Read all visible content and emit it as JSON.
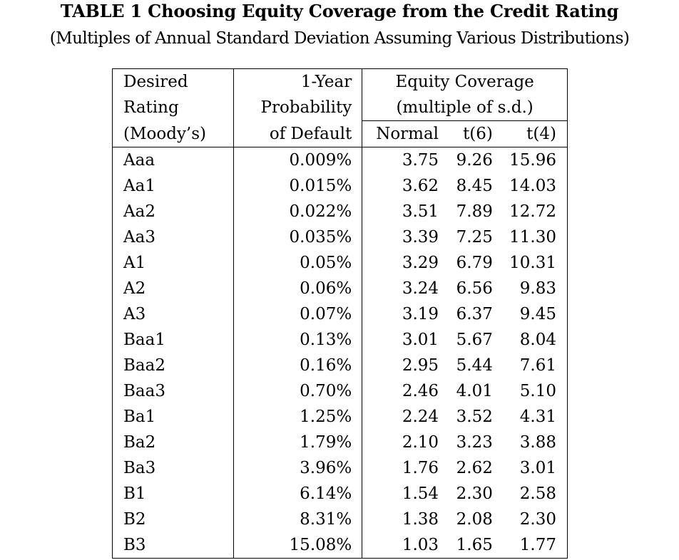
{
  "title": "TABLE 1 Choosing Equity Coverage from the Credit Rating",
  "subtitle": "(Multiples of Annual Standard Deviation Assuming Various Distributions)",
  "header": {
    "rating": [
      "Desired",
      "Rating",
      "(Moody’s)"
    ],
    "probability": [
      "1-Year",
      "Probability",
      "of Default"
    ],
    "coverage": [
      "Equity Coverage",
      "(multiple of s.d.)"
    ],
    "coverage_columns": [
      "Normal",
      "t(6)",
      "t(4)"
    ]
  },
  "rows": [
    {
      "rating": "Aaa",
      "probability": "0.009%",
      "normal": "3.75",
      "t6": "9.26",
      "t4": "15.96"
    },
    {
      "rating": "Aa1",
      "probability": "0.015%",
      "normal": "3.62",
      "t6": "8.45",
      "t4": "14.03"
    },
    {
      "rating": "Aa2",
      "probability": "0.022%",
      "normal": "3.51",
      "t6": "7.89",
      "t4": "12.72"
    },
    {
      "rating": "Aa3",
      "probability": "0.035%",
      "normal": "3.39",
      "t6": "7.25",
      "t4": "11.30"
    },
    {
      "rating": "A1",
      "probability": "0.05%",
      "normal": "3.29",
      "t6": "6.79",
      "t4": "10.31"
    },
    {
      "rating": "A2",
      "probability": "0.06%",
      "normal": "3.24",
      "t6": "6.56",
      "t4": "9.83"
    },
    {
      "rating": "A3",
      "probability": "0.07%",
      "normal": "3.19",
      "t6": "6.37",
      "t4": "9.45"
    },
    {
      "rating": "Baa1",
      "probability": "0.13%",
      "normal": "3.01",
      "t6": "5.67",
      "t4": "8.04"
    },
    {
      "rating": "Baa2",
      "probability": "0.16%",
      "normal": "2.95",
      "t6": "5.44",
      "t4": "7.61"
    },
    {
      "rating": "Baa3",
      "probability": "0.70%",
      "normal": "2.46",
      "t6": "4.01",
      "t4": "5.10"
    },
    {
      "rating": "Ba1",
      "probability": "1.25%",
      "normal": "2.24",
      "t6": "3.52",
      "t4": "4.31"
    },
    {
      "rating": "Ba2",
      "probability": "1.79%",
      "normal": "2.10",
      "t6": "3.23",
      "t4": "3.88"
    },
    {
      "rating": "Ba3",
      "probability": "3.96%",
      "normal": "1.76",
      "t6": "2.62",
      "t4": "3.01"
    },
    {
      "rating": "B1",
      "probability": "6.14%",
      "normal": "1.54",
      "t6": "2.30",
      "t4": "2.58"
    },
    {
      "rating": "B2",
      "probability": "8.31%",
      "normal": "1.38",
      "t6": "2.08",
      "t4": "2.30"
    },
    {
      "rating": "B3",
      "probability": "15.08%",
      "normal": "1.03",
      "t6": "1.65",
      "t4": "1.77"
    }
  ]
}
